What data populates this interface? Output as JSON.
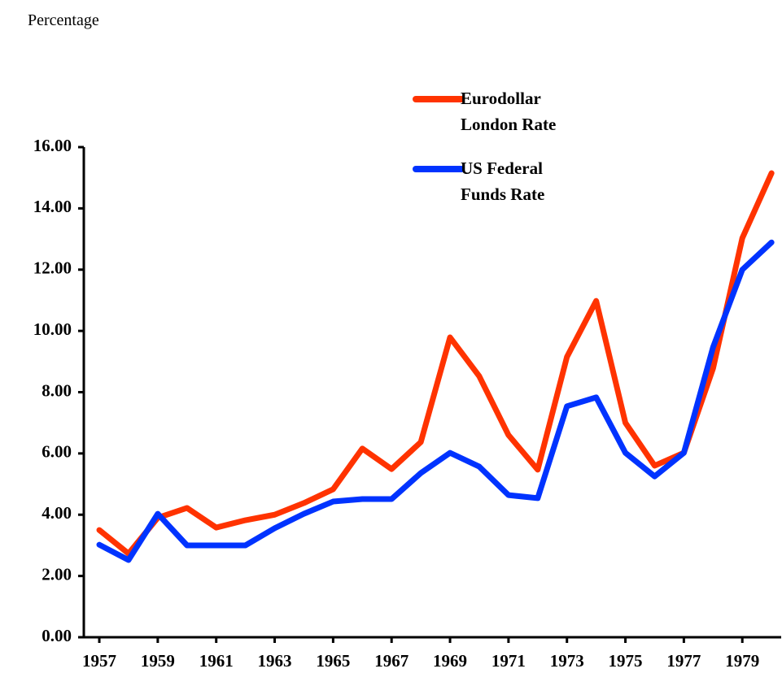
{
  "chart_data": {
    "type": "line",
    "y_axis_label": "Percentage",
    "x": [
      1957,
      1958,
      1959,
      1960,
      1961,
      1962,
      1963,
      1964,
      1965,
      1966,
      1967,
      1968,
      1969,
      1970,
      1971,
      1972,
      1973,
      1974,
      1975,
      1976,
      1977,
      1978,
      1979,
      1980
    ],
    "series": [
      {
        "name": "Eurodollar London Rate",
        "color": "#ff3300",
        "values": [
          3.5,
          2.73,
          3.9,
          4.22,
          3.58,
          3.82,
          4.0,
          4.38,
          4.83,
          6.16,
          5.49,
          6.37,
          9.79,
          8.52,
          6.6,
          5.47,
          9.15,
          10.98,
          7.0,
          5.6,
          6.02,
          8.78,
          13.03,
          15.15
        ]
      },
      {
        "name": "US Federal Funds Rate",
        "color": "#0033ff",
        "values": [
          3.02,
          2.52,
          4.03,
          3.0,
          3.0,
          3.0,
          3.56,
          4.03,
          4.43,
          4.51,
          4.51,
          5.36,
          6.02,
          5.57,
          4.64,
          4.54,
          7.54,
          7.83,
          6.02,
          5.25,
          6.02,
          9.47,
          12.0,
          12.89
        ]
      }
    ],
    "xlim": [
      1956.47,
      1980.33
    ],
    "xticks": [
      1957,
      1959,
      1961,
      1963,
      1965,
      1967,
      1969,
      1971,
      1973,
      1975,
      1977,
      1979
    ],
    "ylim": [
      0,
      16
    ],
    "yticks": [
      {
        "value": 0,
        "label": "0.00"
      },
      {
        "value": 2,
        "label": "2.00"
      },
      {
        "value": 4,
        "label": "4.00"
      },
      {
        "value": 6,
        "label": "6.00"
      },
      {
        "value": 8,
        "label": "8.00"
      },
      {
        "value": 10,
        "label": "10.00"
      },
      {
        "value": 12,
        "label": "12.00"
      },
      {
        "value": 14,
        "label": "14.00"
      },
      {
        "value": 16,
        "label": "16.00"
      }
    ],
    "grid": false
  }
}
